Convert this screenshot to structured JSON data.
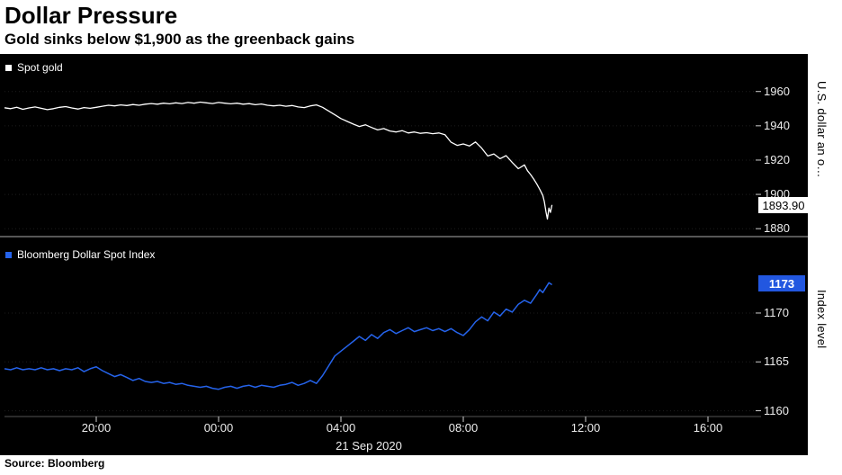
{
  "header": {
    "title": "Dollar Pressure",
    "subtitle": "Gold sinks below $1,900 as the greenback gains"
  },
  "source_label": "Source: Bloomberg",
  "colors": {
    "chart_bg": "#000000",
    "gold_line": "#ffffff",
    "index_line": "#2563eb",
    "badge_blue": "#2257e0",
    "tick_text": "#ededed",
    "separator": "#565656"
  },
  "chart_data": {
    "type": "line",
    "x_axis": {
      "note": "hours relative to 00:00 on 21 Sep 2020",
      "range_hours": [
        -7,
        17.5
      ],
      "ticks": [
        {
          "label": "20:00",
          "hour": -4
        },
        {
          "label": "00:00",
          "hour": 0
        },
        {
          "label": "04:00",
          "hour": 4
        },
        {
          "label": "08:00",
          "hour": 8
        },
        {
          "label": "12:00",
          "hour": 12
        },
        {
          "label": "16:00",
          "hour": 16
        }
      ],
      "date_label": "21 Sep 2020"
    },
    "panels": [
      {
        "name": "Spot gold",
        "legend": "Spot gold",
        "axis_title": "U.S. dollar an o…",
        "ylim": [
          1878,
          1963
        ],
        "yticks": [
          1960,
          1940,
          1920,
          1900,
          1880
        ],
        "last_value": 1893.9,
        "last_value_label": "1893.90",
        "series": [
          {
            "name": "Spot gold",
            "color": "#ffffff",
            "points": [
              [
                -7.0,
                1950.5
              ],
              [
                -6.8,
                1950.0
              ],
              [
                -6.6,
                1950.8
              ],
              [
                -6.4,
                1949.6
              ],
              [
                -6.2,
                1950.4
              ],
              [
                -6.0,
                1951.0
              ],
              [
                -5.8,
                1950.2
              ],
              [
                -5.6,
                1949.4
              ],
              [
                -5.4,
                1950.0
              ],
              [
                -5.2,
                1950.8
              ],
              [
                -5.0,
                1951.2
              ],
              [
                -4.8,
                1950.4
              ],
              [
                -4.6,
                1949.8
              ],
              [
                -4.4,
                1950.6
              ],
              [
                -4.2,
                1950.2
              ],
              [
                -4.0,
                1950.8
              ],
              [
                -3.8,
                1951.4
              ],
              [
                -3.6,
                1952.0
              ],
              [
                -3.4,
                1951.6
              ],
              [
                -3.2,
                1952.2
              ],
              [
                -3.0,
                1951.8
              ],
              [
                -2.8,
                1952.4
              ],
              [
                -2.6,
                1952.0
              ],
              [
                -2.4,
                1952.6
              ],
              [
                -2.2,
                1953.0
              ],
              [
                -2.0,
                1952.6
              ],
              [
                -1.8,
                1953.2
              ],
              [
                -1.6,
                1952.8
              ],
              [
                -1.4,
                1953.4
              ],
              [
                -1.2,
                1953.0
              ],
              [
                -1.0,
                1953.6
              ],
              [
                -0.8,
                1953.2
              ],
              [
                -0.6,
                1953.8
              ],
              [
                -0.4,
                1953.4
              ],
              [
                -0.2,
                1953.0
              ],
              [
                0.0,
                1953.6
              ],
              [
                0.2,
                1953.2
              ],
              [
                0.4,
                1952.8
              ],
              [
                0.6,
                1953.2
              ],
              [
                0.8,
                1952.6
              ],
              [
                1.0,
                1952.9
              ],
              [
                1.2,
                1952.3
              ],
              [
                1.4,
                1952.7
              ],
              [
                1.6,
                1952.0
              ],
              [
                1.8,
                1951.6
              ],
              [
                2.0,
                1952.0
              ],
              [
                2.2,
                1951.4
              ],
              [
                2.4,
                1951.8
              ],
              [
                2.6,
                1951.0
              ],
              [
                2.8,
                1950.6
              ],
              [
                3.0,
                1951.6
              ],
              [
                3.2,
                1952.2
              ],
              [
                3.4,
                1950.8
              ],
              [
                3.6,
                1948.6
              ],
              [
                3.8,
                1946.4
              ],
              [
                4.0,
                1944.2
              ],
              [
                4.2,
                1942.6
              ],
              [
                4.4,
                1941.0
              ],
              [
                4.6,
                1939.6
              ],
              [
                4.8,
                1940.6
              ],
              [
                5.0,
                1939.0
              ],
              [
                5.2,
                1937.6
              ],
              [
                5.4,
                1938.4
              ],
              [
                5.6,
                1937.0
              ],
              [
                5.8,
                1936.4
              ],
              [
                6.0,
                1937.2
              ],
              [
                6.2,
                1935.8
              ],
              [
                6.4,
                1936.4
              ],
              [
                6.6,
                1935.6
              ],
              [
                6.8,
                1936.0
              ],
              [
                7.0,
                1935.4
              ],
              [
                7.2,
                1935.8
              ],
              [
                7.4,
                1934.8
              ],
              [
                7.6,
                1930.4
              ],
              [
                7.8,
                1928.6
              ],
              [
                8.0,
                1929.4
              ],
              [
                8.2,
                1928.2
              ],
              [
                8.4,
                1930.6
              ],
              [
                8.6,
                1927.0
              ],
              [
                8.8,
                1922.4
              ],
              [
                9.0,
                1923.6
              ],
              [
                9.2,
                1920.8
              ],
              [
                9.4,
                1922.6
              ],
              [
                9.6,
                1918.6
              ],
              [
                9.8,
                1915.0
              ],
              [
                10.0,
                1917.2
              ],
              [
                10.1,
                1913.8
              ],
              [
                10.2,
                1911.6
              ],
              [
                10.3,
                1909.0
              ],
              [
                10.4,
                1906.2
              ],
              [
                10.5,
                1903.0
              ],
              [
                10.6,
                1899.4
              ],
              [
                10.65,
                1895.8
              ],
              [
                10.7,
                1890.2
              ],
              [
                10.75,
                1885.6
              ],
              [
                10.8,
                1892.0
              ],
              [
                10.85,
                1889.5
              ],
              [
                10.9,
                1893.9
              ]
            ]
          }
        ]
      },
      {
        "name": "Bloomberg Dollar Spot Index",
        "legend": "Bloomberg Dollar Spot Index",
        "axis_title": "Index level",
        "ylim": [
          1159.5,
          1174.6
        ],
        "yticks": [
          1170,
          1165,
          1160
        ],
        "last_value": 1173,
        "last_value_label": "1173",
        "series": [
          {
            "name": "Bloomberg Dollar Spot Index",
            "color": "#2563eb",
            "points": [
              [
                -7.0,
                1164.3
              ],
              [
                -6.8,
                1164.2
              ],
              [
                -6.6,
                1164.4
              ],
              [
                -6.4,
                1164.2
              ],
              [
                -6.2,
                1164.3
              ],
              [
                -6.0,
                1164.2
              ],
              [
                -5.8,
                1164.4
              ],
              [
                -5.6,
                1164.2
              ],
              [
                -5.4,
                1164.3
              ],
              [
                -5.2,
                1164.1
              ],
              [
                -5.0,
                1164.3
              ],
              [
                -4.8,
                1164.2
              ],
              [
                -4.6,
                1164.4
              ],
              [
                -4.4,
                1164.0
              ],
              [
                -4.2,
                1164.3
              ],
              [
                -4.0,
                1164.5
              ],
              [
                -3.8,
                1164.1
              ],
              [
                -3.6,
                1163.8
              ],
              [
                -3.4,
                1163.5
              ],
              [
                -3.2,
                1163.7
              ],
              [
                -3.0,
                1163.4
              ],
              [
                -2.8,
                1163.1
              ],
              [
                -2.6,
                1163.3
              ],
              [
                -2.4,
                1163.0
              ],
              [
                -2.2,
                1162.9
              ],
              [
                -2.0,
                1163.0
              ],
              [
                -1.8,
                1162.8
              ],
              [
                -1.6,
                1162.9
              ],
              [
                -1.4,
                1162.7
              ],
              [
                -1.2,
                1162.8
              ],
              [
                -1.0,
                1162.6
              ],
              [
                -0.8,
                1162.5
              ],
              [
                -0.6,
                1162.4
              ],
              [
                -0.4,
                1162.5
              ],
              [
                -0.2,
                1162.3
              ],
              [
                0.0,
                1162.2
              ],
              [
                0.2,
                1162.4
              ],
              [
                0.4,
                1162.5
              ],
              [
                0.6,
                1162.3
              ],
              [
                0.8,
                1162.5
              ],
              [
                1.0,
                1162.6
              ],
              [
                1.2,
                1162.4
              ],
              [
                1.4,
                1162.6
              ],
              [
                1.6,
                1162.5
              ],
              [
                1.8,
                1162.4
              ],
              [
                2.0,
                1162.6
              ],
              [
                2.2,
                1162.7
              ],
              [
                2.4,
                1162.9
              ],
              [
                2.6,
                1162.6
              ],
              [
                2.8,
                1162.8
              ],
              [
                3.0,
                1163.1
              ],
              [
                3.2,
                1162.8
              ],
              [
                3.4,
                1163.6
              ],
              [
                3.6,
                1164.6
              ],
              [
                3.8,
                1165.6
              ],
              [
                4.0,
                1166.1
              ],
              [
                4.2,
                1166.6
              ],
              [
                4.4,
                1167.1
              ],
              [
                4.6,
                1167.6
              ],
              [
                4.8,
                1167.2
              ],
              [
                5.0,
                1167.8
              ],
              [
                5.2,
                1167.4
              ],
              [
                5.4,
                1168.0
              ],
              [
                5.6,
                1168.3
              ],
              [
                5.8,
                1167.9
              ],
              [
                6.0,
                1168.2
              ],
              [
                6.2,
                1168.5
              ],
              [
                6.4,
                1168.1
              ],
              [
                6.6,
                1168.3
              ],
              [
                6.8,
                1168.5
              ],
              [
                7.0,
                1168.2
              ],
              [
                7.2,
                1168.4
              ],
              [
                7.4,
                1168.1
              ],
              [
                7.6,
                1168.4
              ],
              [
                7.8,
                1168.0
              ],
              [
                8.0,
                1167.7
              ],
              [
                8.2,
                1168.3
              ],
              [
                8.4,
                1169.1
              ],
              [
                8.6,
                1169.6
              ],
              [
                8.8,
                1169.2
              ],
              [
                9.0,
                1170.1
              ],
              [
                9.2,
                1169.7
              ],
              [
                9.4,
                1170.4
              ],
              [
                9.6,
                1170.1
              ],
              [
                9.8,
                1170.9
              ],
              [
                10.0,
                1171.3
              ],
              [
                10.2,
                1171.0
              ],
              [
                10.4,
                1171.9
              ],
              [
                10.5,
                1172.4
              ],
              [
                10.6,
                1172.1
              ],
              [
                10.7,
                1172.6
              ],
              [
                10.8,
                1173.1
              ],
              [
                10.9,
                1172.9
              ]
            ]
          }
        ]
      }
    ]
  }
}
